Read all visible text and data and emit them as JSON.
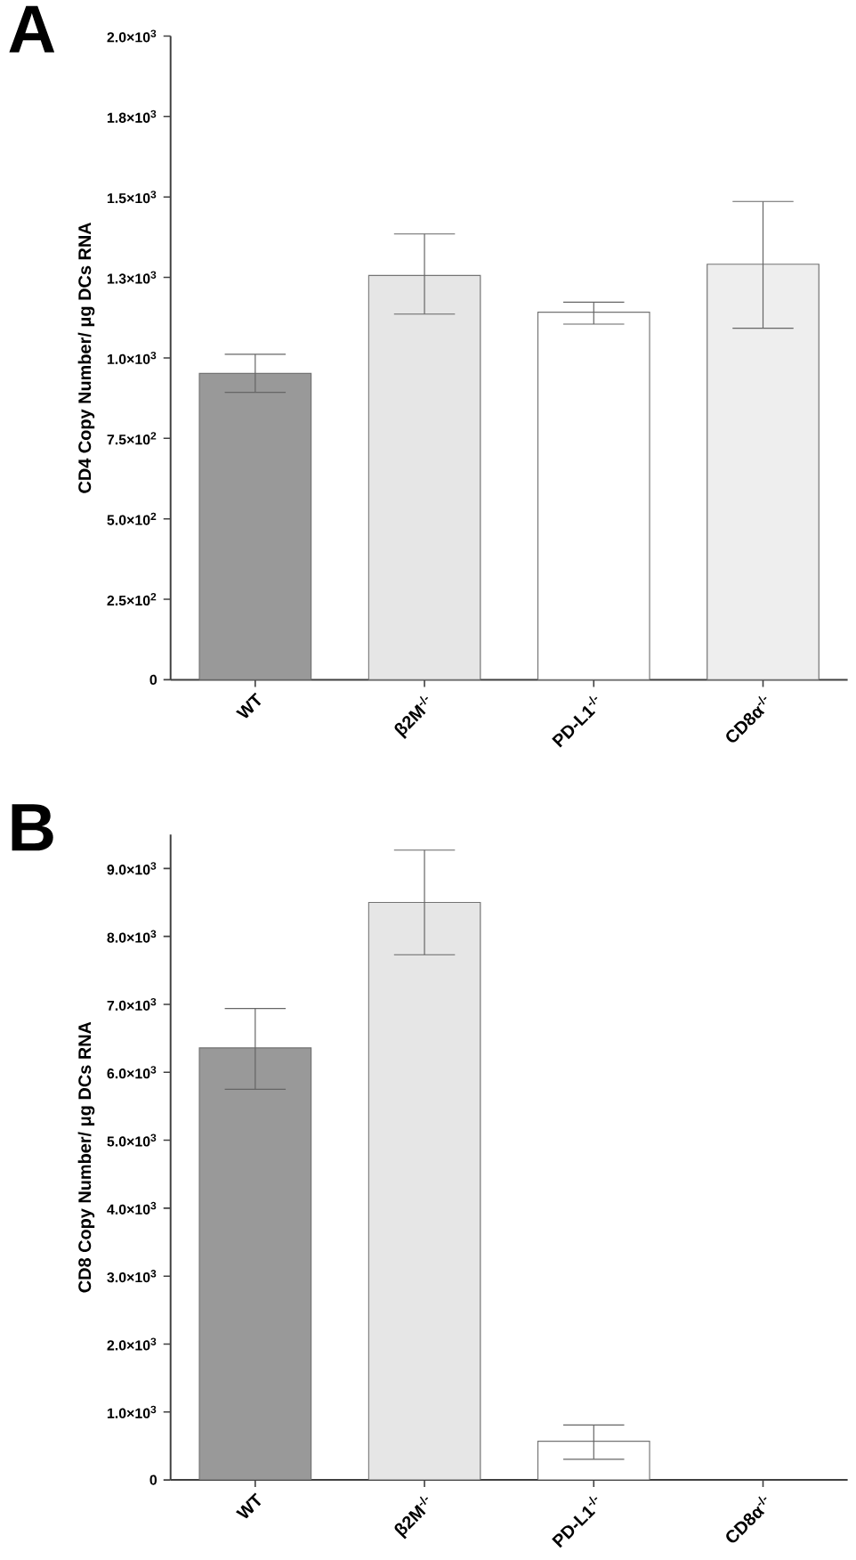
{
  "chart_data": [
    {
      "type": "bar",
      "title": "A",
      "ylabel": "CD4 Copy Number/ μg DCs RNA",
      "categories": [
        "WT",
        "β2M$^{-/-}$",
        "PD-L1$^{-/-}$",
        "CD8α$^{-/-}$"
      ],
      "values": [
        952,
        1256,
        1142,
        1291
      ],
      "errors": [
        [
          893,
          1011
        ],
        [
          1136,
          1385
        ],
        [
          1105,
          1173
        ],
        [
          1092,
          1486
        ]
      ],
      "colors": [
        "#999999",
        "#e6e6e6",
        "#ffffff",
        "#eeeeee"
      ],
      "ylim": [
        0,
        2000
      ],
      "yticks": [
        0,
        {
          "value": 250,
          "label": "2.5×10$^{2}$"
        },
        {
          "value": 500,
          "label": "5.0×10$^{2}$"
        },
        {
          "value": 750,
          "label": "7.5×10$^{2}$"
        },
        {
          "value": 1000,
          "label": "1.0×10$^{3}$"
        },
        {
          "value": 1250,
          "label": "1.3×10$^{3}$"
        },
        {
          "value": 1500,
          "label": "1.5×10$^{3}$"
        },
        {
          "value": 1750,
          "label": "1.8×10$^{3}$"
        },
        {
          "value": 2000,
          "label": "2.0×10$^{3}$"
        }
      ]
    },
    {
      "type": "bar",
      "title": "B",
      "ylabel": "CD8 Copy Number/ μg DCs RNA",
      "categories": [
        "WT",
        "β2M$^{-/-}$",
        "PD-L1$^{-/-}$",
        "CD8α$^{-/-}$"
      ],
      "values": [
        6360,
        8500,
        570,
        null
      ],
      "errors": [
        [
          5750,
          6940
        ],
        [
          7730,
          9270
        ],
        [
          305,
          810
        ],
        null
      ],
      "colors": [
        "#999999",
        "#e6e6e6",
        "#ffffff",
        "#eeeeee"
      ],
      "ylim": [
        0,
        9500
      ],
      "yticks": [
        0,
        {
          "value": 1000,
          "label": "1.0×10$^{3}$"
        },
        {
          "value": 2000,
          "label": "2.0×10$^{3}$"
        },
        {
          "value": 3000,
          "label": "3.0×10$^{3}$"
        },
        {
          "value": 4000,
          "label": "4.0×10$^{3}$"
        },
        {
          "value": 5000,
          "label": "5.0×10$^{3}$"
        },
        {
          "value": 6000,
          "label": "6.0×10$^{3}$"
        },
        {
          "value": 7000,
          "label": "7.0×10$^{3}$"
        },
        {
          "value": 8000,
          "label": "8.0×10$^{3}$"
        },
        {
          "value": 9000,
          "label": "9.0×10$^{3}$"
        }
      ]
    }
  ]
}
